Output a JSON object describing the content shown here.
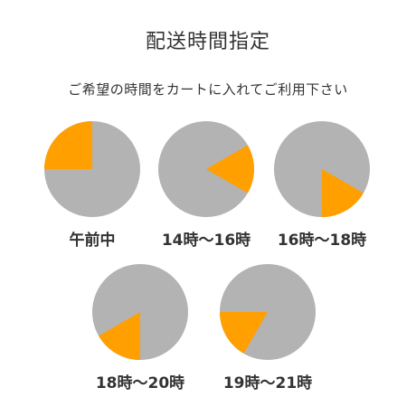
{
  "header": {
    "title": "配送時間指定",
    "subtitle": "ご希望の時間をカートに入れてご利用下さい"
  },
  "colors": {
    "clock_face": "#b3b3b3",
    "highlight": "#ff9f00",
    "text": "#333333"
  },
  "time_slots": [
    {
      "label": "午前中",
      "start_hour": 9,
      "end_hour": 12
    },
    {
      "label": "14時～16時",
      "start_hour": 14,
      "end_hour": 16
    },
    {
      "label": "16時～18時",
      "start_hour": 16,
      "end_hour": 18
    },
    {
      "label": "18時～20時",
      "start_hour": 18,
      "end_hour": 20
    },
    {
      "label": "19時～21時",
      "start_hour": 19,
      "end_hour": 21
    }
  ]
}
